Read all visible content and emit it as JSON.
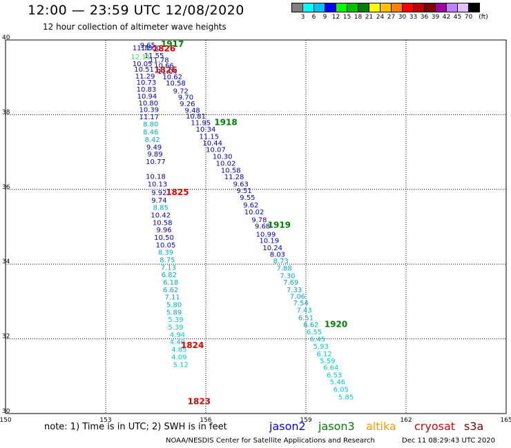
{
  "header": {
    "title": "12:00 — 23:59 UTC 12/08/2020",
    "subtitle": "12 hour collection of altimeter wave heights"
  },
  "legend": {
    "unit_label": "(ft)",
    "bins": [
      {
        "label": "3",
        "color": "#808080"
      },
      {
        "label": "6",
        "color": "#00ffff"
      },
      {
        "label": "9",
        "color": "#00c0ff"
      },
      {
        "label": "12",
        "color": "#0000ff"
      },
      {
        "label": "15",
        "color": "#00ff00"
      },
      {
        "label": "18",
        "color": "#00c000"
      },
      {
        "label": "21",
        "color": "#008000"
      },
      {
        "label": "24",
        "color": "#ffff00"
      },
      {
        "label": "27",
        "color": "#ffc000"
      },
      {
        "label": "30",
        "color": "#ff8000"
      },
      {
        "label": "33",
        "color": "#ff0000"
      },
      {
        "label": "36",
        "color": "#c00000"
      },
      {
        "label": "39",
        "color": "#800000"
      },
      {
        "label": "42",
        "color": "#a000a0"
      },
      {
        "label": "45",
        "color": "#c080ff"
      },
      {
        "label": "70",
        "color": "#e0c0ff"
      },
      {
        "label": "",
        "color": "#000000"
      }
    ]
  },
  "chart_data": {
    "type": "scatter",
    "title": "12:00 — 23:59 UTC 12/08/2020",
    "x_ticks": [
      "150",
      "153",
      "156",
      "159",
      "162",
      "165"
    ],
    "y_ticks": [
      "30",
      "32",
      "34",
      "36",
      "38",
      "40"
    ],
    "xlim": [
      150,
      165
    ],
    "ylim": [
      30,
      40
    ],
    "colors": {
      "jason2": "#0000c8",
      "jason3": "#008000",
      "cryosat": "#e00000",
      "mid": "#00aacc",
      "low": "#00cccc",
      "green_light": "#44dd44"
    },
    "tracks": [
      {
        "name": "left",
        "points": [
          [
            "9.65",
            154.26,
            39.8,
            "jason2"
          ],
          [
            "11.78",
            154.1,
            39.72,
            "jason2"
          ],
          [
            "11.00",
            154.35,
            39.72,
            "jason2"
          ],
          [
            "11.55",
            154.45,
            39.52,
            "jason2"
          ],
          [
            "12.11",
            154.05,
            39.48,
            "green_light"
          ],
          [
            "11.78",
            154.6,
            39.4,
            "jason2"
          ],
          [
            "10.05",
            154.1,
            39.3,
            "jason2"
          ],
          [
            "10.66",
            154.75,
            39.25,
            "jason2"
          ],
          [
            "10.51",
            154.15,
            39.15,
            "jason2"
          ],
          [
            "11.04",
            154.85,
            39.1,
            "jason2"
          ],
          [
            "11.29",
            154.18,
            38.97,
            "jason2"
          ],
          [
            "10.62",
            155.0,
            38.95,
            "jason2"
          ],
          [
            "10.73",
            154.22,
            38.8,
            "jason2"
          ],
          [
            "10.58",
            155.1,
            38.78,
            "jason2"
          ],
          [
            "10.83",
            154.22,
            38.62,
            "jason2"
          ],
          [
            "9.72",
            155.25,
            38.57,
            "jason2"
          ],
          [
            "10.94",
            154.24,
            38.43,
            "jason2"
          ],
          [
            "9.70",
            155.4,
            38.4,
            "jason2"
          ],
          [
            "10.80",
            154.28,
            38.25,
            "jason2"
          ],
          [
            "9.26",
            155.45,
            38.23,
            "jason2"
          ],
          [
            "10.39",
            154.3,
            38.07,
            "jason2"
          ],
          [
            "9.48",
            155.6,
            38.05,
            "jason2"
          ],
          [
            "11.17",
            154.3,
            37.88,
            "jason2"
          ],
          [
            "10.81",
            155.7,
            37.9,
            "jason2"
          ],
          [
            "8.80",
            154.35,
            37.68,
            "mid"
          ],
          [
            "11.95",
            155.85,
            37.72,
            "jason2"
          ],
          [
            "10.34",
            156.0,
            37.55,
            "jason2"
          ],
          [
            "8.46",
            154.35,
            37.47,
            "mid"
          ],
          [
            "11.15",
            156.1,
            37.35,
            "jason2"
          ],
          [
            "8.42",
            154.4,
            37.27,
            "mid"
          ],
          [
            "10.44",
            156.2,
            37.18,
            "jason2"
          ],
          [
            "10.07",
            156.3,
            37.0,
            "jason2"
          ],
          [
            "9.49",
            154.45,
            37.07,
            "jason2"
          ],
          [
            "10.30",
            156.5,
            36.82,
            "jason2"
          ],
          [
            "9.89",
            154.48,
            36.88,
            "jason2"
          ],
          [
            "10.02",
            156.6,
            36.63,
            "jason2"
          ],
          [
            "10.77",
            154.5,
            36.68,
            "jason2"
          ],
          [
            "10.58",
            156.75,
            36.45,
            "jason2"
          ],
          [
            "11.28",
            156.85,
            36.27,
            "jason2"
          ],
          [
            "10.18",
            154.5,
            36.28,
            "jason2"
          ],
          [
            "9.63",
            157.05,
            36.08,
            "jason2"
          ],
          [
            "10.13",
            154.55,
            36.08,
            "jason2"
          ],
          [
            "9.51",
            157.15,
            35.9,
            "jason2"
          ],
          [
            "9.55",
            157.25,
            35.72,
            "jason2"
          ],
          [
            "9.92",
            154.6,
            35.85,
            "jason2"
          ],
          [
            "9.74",
            154.6,
            35.65,
            "jason2"
          ],
          [
            "9.62",
            157.35,
            35.52,
            "jason2"
          ],
          [
            "8.85",
            154.65,
            35.45,
            "mid"
          ],
          [
            "10.02",
            157.45,
            35.33,
            "jason2"
          ],
          [
            "10.42",
            154.65,
            35.25,
            "jason2"
          ],
          [
            "9.78",
            157.6,
            35.12,
            "jason2"
          ],
          [
            "10.58",
            154.7,
            35.05,
            "jason2"
          ],
          [
            "9.68",
            157.7,
            34.95,
            "jason2"
          ],
          [
            "9.96",
            154.75,
            34.85,
            "jason2"
          ],
          [
            "10.99",
            157.8,
            34.73,
            "jason2"
          ],
          [
            "10.50",
            154.75,
            34.65,
            "jason2"
          ],
          [
            "10.19",
            157.9,
            34.57,
            "jason2"
          ],
          [
            "10.05",
            154.8,
            34.45,
            "jason2"
          ],
          [
            "10.24",
            158.0,
            34.37,
            "jason2"
          ],
          [
            "8.03",
            158.15,
            34.2,
            "jason2"
          ],
          [
            "8.39",
            154.8,
            34.25,
            "mid"
          ],
          [
            "8.73",
            158.25,
            34.02,
            "mid"
          ],
          [
            "8.75",
            154.85,
            34.05,
            "mid"
          ],
          [
            "7.88",
            158.35,
            33.83,
            "mid"
          ],
          [
            "7.13",
            154.88,
            33.85,
            "mid"
          ],
          [
            "7.30",
            158.45,
            33.63,
            "mid"
          ],
          [
            "6.82",
            154.9,
            33.65,
            "mid"
          ],
          [
            "7.69",
            158.55,
            33.45,
            "mid"
          ],
          [
            "6.18",
            154.95,
            33.45,
            "mid"
          ],
          [
            "7.33",
            158.65,
            33.25,
            "mid"
          ],
          [
            "6.62",
            154.95,
            33.25,
            "mid"
          ],
          [
            "7.06",
            158.75,
            33.07,
            "mid"
          ],
          [
            "7.11",
            155.0,
            33.05,
            "mid"
          ],
          [
            "7.54",
            158.85,
            32.9,
            "mid"
          ],
          [
            "5.80",
            155.05,
            32.85,
            "mid"
          ],
          [
            "7.43",
            158.95,
            32.7,
            "mid"
          ],
          [
            "6.51",
            159.0,
            32.5,
            "mid"
          ],
          [
            "5.89",
            155.05,
            32.65,
            "mid"
          ],
          [
            "6.62",
            159.15,
            32.32,
            "mid"
          ],
          [
            "5.39",
            155.1,
            32.45,
            "low"
          ],
          [
            "6.55",
            159.25,
            32.12,
            "low"
          ],
          [
            "5.39",
            155.1,
            32.25,
            "low"
          ],
          [
            "6.45",
            159.35,
            31.93,
            "low"
          ],
          [
            "4.94",
            155.15,
            32.05,
            "low"
          ],
          [
            "5.93",
            159.45,
            31.73,
            "low"
          ],
          [
            "4.40",
            155.15,
            31.85,
            "low"
          ],
          [
            "6.12",
            159.55,
            31.53,
            "low"
          ],
          [
            "4.85",
            155.2,
            31.65,
            "low"
          ],
          [
            "5.59",
            159.65,
            31.35,
            "low"
          ],
          [
            "4.09",
            155.2,
            31.45,
            "low"
          ],
          [
            "6.64",
            159.75,
            31.17,
            "low"
          ],
          [
            "5.12",
            155.25,
            31.25,
            "low"
          ],
          [
            "6.53",
            159.85,
            30.97,
            "low"
          ],
          [
            "5.46",
            159.95,
            30.78,
            "low"
          ],
          [
            "6.05",
            160.05,
            30.58,
            "low"
          ],
          [
            "5.85",
            160.2,
            30.38,
            "low"
          ]
        ]
      }
    ],
    "pass_labels": [
      {
        "text": "1917",
        "x": 155.0,
        "y": 39.82,
        "color": "jason3"
      },
      {
        "text": "1826",
        "x": 154.75,
        "y": 39.7,
        "color": "cryosat"
      },
      {
        "text": "1826",
        "x": 154.8,
        "y": 39.12,
        "color": "cryosat"
      },
      {
        "text": "1918",
        "x": 156.6,
        "y": 37.72,
        "color": "jason3"
      },
      {
        "text": "1825",
        "x": 155.15,
        "y": 35.85,
        "color": "cryosat"
      },
      {
        "text": "1919",
        "x": 158.2,
        "y": 34.97,
        "color": "jason3"
      },
      {
        "text": "1920",
        "x": 159.9,
        "y": 32.32,
        "color": "jason3"
      },
      {
        "text": "1824",
        "x": 155.6,
        "y": 31.75,
        "color": "cryosat"
      },
      {
        "text": "1823",
        "x": 155.8,
        "y": 30.25,
        "color": "cryosat"
      }
    ]
  },
  "footer": {
    "note": "note: 1) Time is in UTC; 2) SWH is in feet",
    "satellites": [
      {
        "name": "jason2",
        "color": "#0000ff"
      },
      {
        "name": "jason3",
        "color": "#008000"
      },
      {
        "name": "altika",
        "color": "#ff9900"
      },
      {
        "name": "cryosat",
        "color": "#e00000"
      },
      {
        "name": "s3a",
        "color": "#800000"
      }
    ],
    "credit": "NOAA/NESDIS Center for Satellite Applications and Research",
    "timestamp": "Dec 11 08:29:43 UTC 2020"
  }
}
